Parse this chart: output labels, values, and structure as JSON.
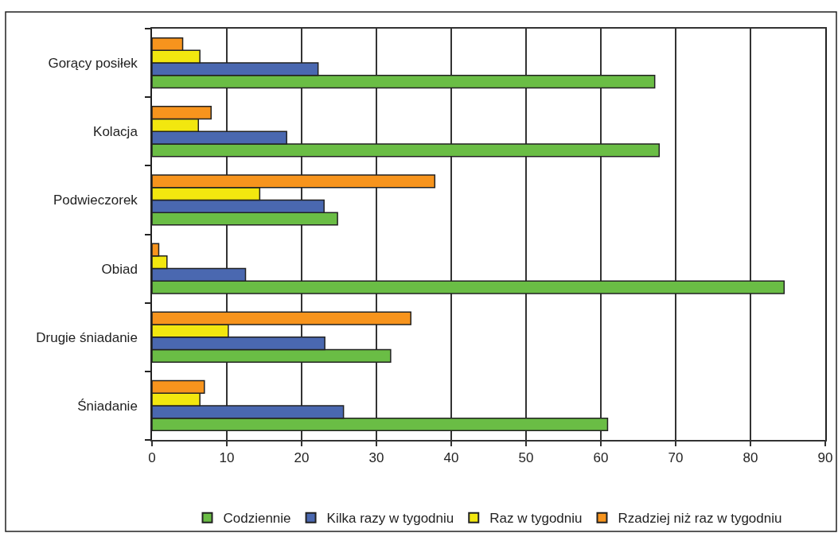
{
  "chart_data": {
    "type": "bar",
    "orientation": "horizontal",
    "categories": [
      "Gorący posiłek",
      "Kolacja",
      "Podwieczorek",
      "Obiad",
      "Drugie śniadanie",
      "Śniadanie"
    ],
    "series": [
      {
        "name": "Codziennie",
        "color": "#6abd45",
        "values": [
          67.2,
          67.8,
          24.8,
          84.5,
          31.9,
          60.9
        ]
      },
      {
        "name": "Kilka razy w tygodniu",
        "color": "#4a68b0",
        "values": [
          22.2,
          18.0,
          23.0,
          12.5,
          23.1,
          25.6
        ]
      },
      {
        "name": "Raz w tygodniu",
        "color": "#f2e70f",
        "values": [
          6.4,
          6.2,
          14.4,
          2.0,
          10.2,
          6.4
        ]
      },
      {
        "name": "Rzadziej niż raz w tygodniu",
        "color": "#f7941d",
        "values": [
          4.1,
          7.9,
          37.8,
          0.9,
          34.6,
          7.0
        ]
      }
    ],
    "xlim": [
      0,
      90
    ],
    "xticks": [
      0,
      10,
      20,
      30,
      40,
      50,
      60,
      70,
      80,
      90
    ],
    "grid": "x",
    "legend": "bottom"
  }
}
